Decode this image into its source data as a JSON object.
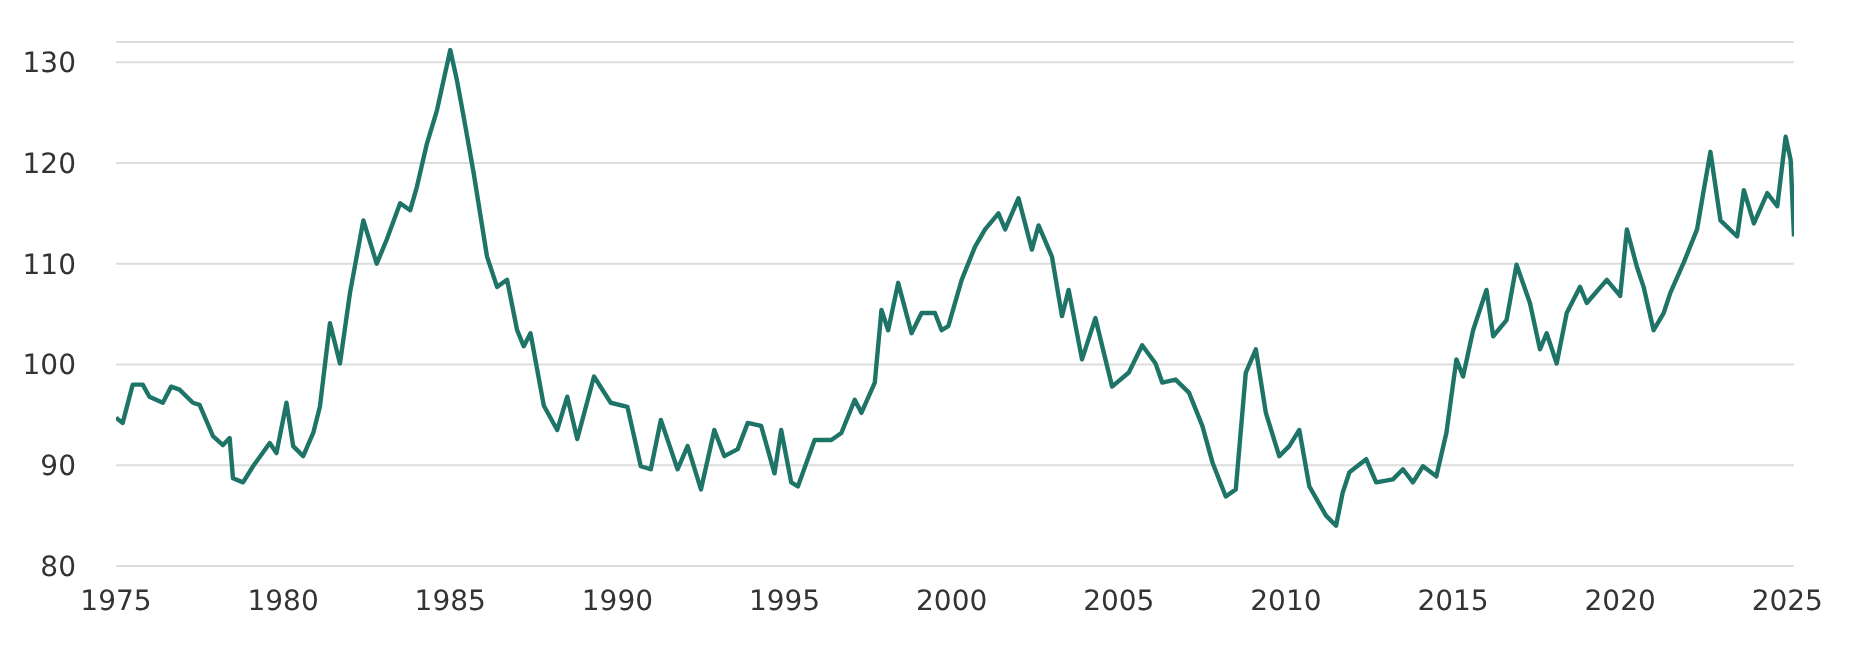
{
  "chart_data": {
    "type": "line",
    "grid": "y",
    "marker": "none",
    "line_style": "solid",
    "xlim": [
      1975,
      2025.2
    ],
    "xticks": [
      1975,
      1980,
      1985,
      1990,
      1995,
      2000,
      2005,
      2010,
      2015,
      2020,
      2025
    ],
    "ylim": [
      80,
      132
    ],
    "yticks": [
      80,
      90,
      100,
      110,
      120,
      130
    ],
    "x": [
      1975.0,
      1975.2,
      1975.5,
      1975.8,
      1976.0,
      1976.4,
      1976.65,
      1976.9,
      1977.3,
      1977.5,
      1977.9,
      1978.2,
      1978.4,
      1978.5,
      1978.8,
      1979.1,
      1979.6,
      1979.8,
      1980.1,
      1980.3,
      1980.6,
      1980.9,
      1981.1,
      1981.4,
      1981.7,
      1982.0,
      1982.4,
      1982.8,
      1983.1,
      1983.5,
      1983.8,
      1984.0,
      1984.3,
      1984.6,
      1985.0,
      1985.2,
      1985.4,
      1985.7,
      1986.1,
      1986.4,
      1986.7,
      1987.0,
      1987.2,
      1987.4,
      1987.8,
      1988.2,
      1988.5,
      1988.8,
      1989.3,
      1989.8,
      1990.3,
      1990.7,
      1991.0,
      1991.3,
      1991.8,
      1992.1,
      1992.5,
      1992.9,
      1993.2,
      1993.6,
      1993.9,
      1994.3,
      1994.7,
      1994.9,
      1995.2,
      1995.4,
      1995.9,
      1996.4,
      1996.7,
      1997.1,
      1997.3,
      1997.7,
      1997.9,
      1998.1,
      1998.4,
      1998.8,
      1999.1,
      1999.5,
      1999.7,
      1999.9,
      2000.3,
      2000.7,
      2001.0,
      2001.4,
      2001.6,
      2002.0,
      2002.4,
      2002.6,
      2003.0,
      2003.3,
      2003.5,
      2003.9,
      2004.3,
      2004.8,
      2005.3,
      2005.7,
      2006.1,
      2006.3,
      2006.7,
      2007.1,
      2007.5,
      2007.8,
      2008.2,
      2008.5,
      2008.8,
      2009.1,
      2009.4,
      2009.8,
      2010.1,
      2010.4,
      2010.7,
      2011.2,
      2011.5,
      2011.7,
      2011.9,
      2012.4,
      2012.7,
      2013.2,
      2013.5,
      2013.8,
      2014.1,
      2014.5,
      2014.8,
      2015.1,
      2015.3,
      2015.6,
      2016.0,
      2016.2,
      2016.6,
      2016.9,
      2017.3,
      2017.6,
      2017.8,
      2018.1,
      2018.4,
      2018.8,
      2019.0,
      2019.6,
      2020.0,
      2020.2,
      2020.5,
      2020.7,
      2021.0,
      2021.3,
      2021.5,
      2021.9,
      2022.3,
      2022.5,
      2022.7,
      2023.0,
      2023.5,
      2023.7,
      2024.0,
      2024.4,
      2024.7,
      2024.95,
      2025.1,
      2025.2
    ],
    "series": [
      {
        "color": "#1f7468",
        "values": [
          94.7,
          94.2,
          98.0,
          98.0,
          96.8,
          96.2,
          97.8,
          97.5,
          96.2,
          96.0,
          92.9,
          92.0,
          92.7,
          88.7,
          88.3,
          89.9,
          92.2,
          91.2,
          96.2,
          91.9,
          90.9,
          93.2,
          95.8,
          104.1,
          100.1,
          107.1,
          114.3,
          110.0,
          112.4,
          116.0,
          115.3,
          117.6,
          121.9,
          125.2,
          131.2,
          128.2,
          124.6,
          119.0,
          110.7,
          107.7,
          108.4,
          103.4,
          101.8,
          103.1,
          95.9,
          93.5,
          96.8,
          92.6,
          98.8,
          96.2,
          95.8,
          89.9,
          89.6,
          94.5,
          89.6,
          91.9,
          87.6,
          93.5,
          90.9,
          91.6,
          94.2,
          93.9,
          89.2,
          93.5,
          88.3,
          87.9,
          92.5,
          92.5,
          93.2,
          96.5,
          95.2,
          98.2,
          105.4,
          103.4,
          108.1,
          103.1,
          105.1,
          105.1,
          103.4,
          103.8,
          108.4,
          111.7,
          113.4,
          115.0,
          113.4,
          116.5,
          111.4,
          113.8,
          110.7,
          104.8,
          107.4,
          100.5,
          104.6,
          97.8,
          99.2,
          101.9,
          100.1,
          98.2,
          98.5,
          97.2,
          93.9,
          90.3,
          86.9,
          87.6,
          99.2,
          101.5,
          95.2,
          90.9,
          91.9,
          93.5,
          87.9,
          85.0,
          84.0,
          87.3,
          89.3,
          90.6,
          88.3,
          88.6,
          89.6,
          88.3,
          89.9,
          88.9,
          93.2,
          100.5,
          98.8,
          103.4,
          107.4,
          102.8,
          104.4,
          109.9,
          106.1,
          101.5,
          103.1,
          100.1,
          105.1,
          107.7,
          106.1,
          108.4,
          106.8,
          113.4,
          109.7,
          107.7,
          103.4,
          105.1,
          107.1,
          110.1,
          113.4,
          117.3,
          121.1,
          114.3,
          112.7,
          117.3,
          114.0,
          117.0,
          115.7,
          122.6,
          120.3,
          112.7
        ]
      }
    ]
  }
}
